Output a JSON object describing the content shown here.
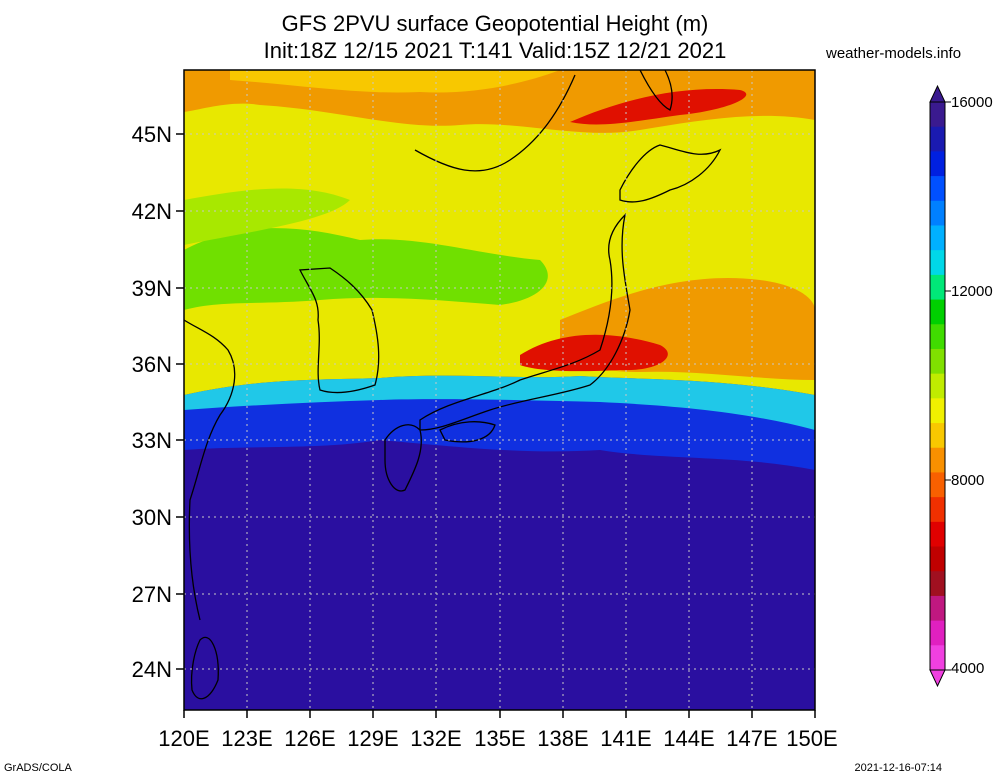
{
  "header": {
    "title_line1": "GFS 2PVU surface Geopotential Height (m)",
    "title_line2": "Init:18Z 12/15 2021 T:141 Valid:15Z 12/21 2021",
    "site": "weather-models.info"
  },
  "map": {
    "lat_labels": [
      "45N",
      "42N",
      "39N",
      "36N",
      "33N",
      "30N",
      "27N",
      "24N"
    ],
    "lon_labels": [
      "120E",
      "123E",
      "126E",
      "129E",
      "132E",
      "135E",
      "138E",
      "141E",
      "144E",
      "147E",
      "150E"
    ],
    "colors": {
      "low_red": "#e01000",
      "orange": "#f09a00",
      "yellow": "#e8e800",
      "green": "#30d000",
      "cyan": "#20c8e8",
      "blue": "#1030e0",
      "deep_blue": "#2a0fa0",
      "grid": "#c8c8c8",
      "coast": "#000000"
    }
  },
  "colorbar": {
    "labels": [
      "16000",
      "12000",
      "8000",
      "4000"
    ],
    "colors": [
      "#3a1a8f",
      "#1a1ab0",
      "#0020e0",
      "#0050ff",
      "#0080ff",
      "#00b0ff",
      "#00d8e8",
      "#00e878",
      "#00d000",
      "#40dc00",
      "#80e000",
      "#c0ec00",
      "#f0f000",
      "#f8c800",
      "#f89000",
      "#f86000",
      "#f03000",
      "#e00000",
      "#c00000",
      "#a01020",
      "#c01880",
      "#e020c0",
      "#f040e0"
    ]
  },
  "footer": {
    "left": "GrADS/COLA",
    "right": "2021-12-16-07:14"
  }
}
